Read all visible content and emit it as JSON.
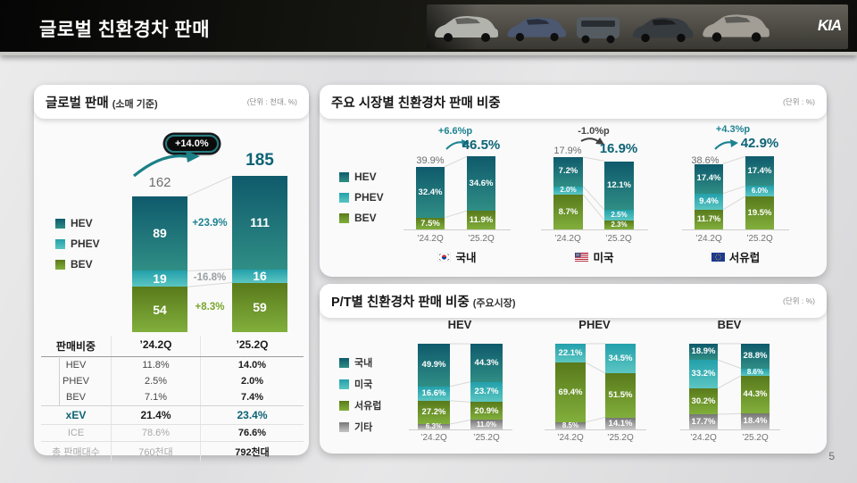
{
  "header": {
    "title": "글로벌 친환경차 판매",
    "brand": "KIA"
  },
  "page_number": "5",
  "colors": {
    "HEV": [
      "#0f5a6c",
      "#2f8e85"
    ],
    "PHEV": [
      "#23a0ab",
      "#5cc6c2"
    ],
    "BEV": [
      "#597a1b",
      "#81af3c"
    ],
    "ETC": [
      "#767676",
      "#c6c6c6"
    ]
  },
  "left_panel": {
    "title": "글로벌 판매",
    "title_suffix": "(소매 기준)",
    "unit": "(단위 : 천대, %)",
    "legend": [
      {
        "label": "HEV",
        "key": "HEV"
      },
      {
        "label": "PHEV",
        "key": "PHEV"
      },
      {
        "label": "BEV",
        "key": "BEV"
      }
    ],
    "table": {
      "headers": [
        "판매비중",
        "’24.2Q",
        "’25.2Q"
      ],
      "rows": [
        {
          "label": "HEV",
          "v1": "11.8%",
          "v2": "14.0%",
          "cls": "row-plain"
        },
        {
          "label": "PHEV",
          "v1": "2.5%",
          "v2": "2.0%",
          "cls": "row-plain"
        },
        {
          "label": "BEV",
          "v1": "7.1%",
          "v2": "7.4%",
          "cls": "row-plain"
        },
        {
          "label": "xEV",
          "v1": "21.4%",
          "v2": "23.4%",
          "cls": "row-xev"
        },
        {
          "label": "ICE",
          "v1": "78.6%",
          "v2": "76.6%",
          "cls": "row-muted"
        },
        {
          "label": "총 판매대수",
          "v1": "760천대",
          "v2": "792천대",
          "cls": "row-muted"
        }
      ]
    }
  },
  "market_panel": {
    "title": "주요 시장별 친환경차 판매 비중",
    "unit": "(단위 : %)",
    "legend": [
      {
        "label": "HEV",
        "key": "HEV"
      },
      {
        "label": "PHEV",
        "key": "PHEV"
      },
      {
        "label": "BEV",
        "key": "BEV"
      }
    ]
  },
  "pt_panel": {
    "title": "P/T별 친환경차 판매 비중",
    "title_suffix": "(주요시장)",
    "unit": "(단위 : %)",
    "legend": [
      {
        "label": "국내",
        "key": "HEV"
      },
      {
        "label": "미국",
        "key": "PHEV"
      },
      {
        "label": "서유럽",
        "key": "BEV"
      },
      {
        "label": "기타",
        "key": "ETC"
      }
    ]
  },
  "chart_data": [
    {
      "id": "global_sales",
      "type": "bar",
      "stacked": true,
      "title": "글로벌 판매 (소매 기준)",
      "unit": "천대",
      "categories": [
        "’24.2Q",
        "’25.2Q"
      ],
      "totals_display": [
        "162",
        "185"
      ],
      "change": "+14.0%",
      "series": [
        {
          "name": "HEV",
          "key": "HEV",
          "values": [
            "89",
            "111"
          ]
        },
        {
          "name": "PHEV",
          "key": "PHEV",
          "values": [
            "19",
            "16"
          ]
        },
        {
          "name": "BEV",
          "key": "BEV",
          "values": [
            "54",
            "59"
          ]
        }
      ],
      "seg_changes": [
        {
          "name": "HEV",
          "label": "+23.9%",
          "tone": "teal"
        },
        {
          "name": "PHEV",
          "label": "-16.8%",
          "tone": "gray"
        },
        {
          "name": "BEV",
          "label": "+8.3%",
          "tone": "green"
        }
      ]
    },
    {
      "id": "korea",
      "type": "bar",
      "stacked": true,
      "region": "국내",
      "change": "+6.6%p",
      "categories": [
        "’24.2Q",
        "’25.2Q"
      ],
      "totals_display": [
        "39.9%",
        "46.5%"
      ],
      "series": [
        {
          "name": "HEV",
          "key": "HEV",
          "values": [
            "32.4",
            "34.6"
          ]
        },
        {
          "name": "PHEV",
          "key": "PHEV",
          "values": [
            "",
            ""
          ]
        },
        {
          "name": "BEV",
          "key": "BEV",
          "values": [
            "7.5",
            "11.9"
          ]
        }
      ]
    },
    {
      "id": "us",
      "type": "bar",
      "stacked": true,
      "region": "미국",
      "change": "-1.0%p",
      "categories": [
        "’24.2Q",
        "’25.2Q"
      ],
      "totals_display": [
        "17.9%",
        "16.9%"
      ],
      "series": [
        {
          "name": "HEV",
          "key": "HEV",
          "values": [
            "7.2",
            "12.1"
          ]
        },
        {
          "name": "PHEV",
          "key": "PHEV",
          "values": [
            "2.0",
            "2.5"
          ]
        },
        {
          "name": "BEV",
          "key": "BEV",
          "values": [
            "8.7",
            "2.3"
          ]
        }
      ]
    },
    {
      "id": "western_europe",
      "type": "bar",
      "stacked": true,
      "region": "서유럽",
      "change": "+4.3%p",
      "categories": [
        "’24.2Q",
        "’25.2Q"
      ],
      "totals_display": [
        "38.6%",
        "42.9%"
      ],
      "series": [
        {
          "name": "HEV",
          "key": "HEV",
          "values": [
            "17.4",
            "17.4"
          ]
        },
        {
          "name": "PHEV",
          "key": "PHEV",
          "values": [
            "9.4",
            "6.0"
          ]
        },
        {
          "name": "BEV",
          "key": "BEV",
          "values": [
            "11.7",
            "19.5"
          ]
        }
      ]
    },
    {
      "id": "pt_hev",
      "type": "bar",
      "stacked": true,
      "group": "HEV",
      "categories": [
        "’24.2Q",
        "’25.2Q"
      ],
      "series": [
        {
          "name": "국내",
          "key": "HEV",
          "values": [
            "49.9",
            "44.3"
          ]
        },
        {
          "name": "미국",
          "key": "PHEV",
          "values": [
            "16.6",
            "23.7"
          ]
        },
        {
          "name": "서유럽",
          "key": "BEV",
          "values": [
            "27.2",
            "20.9"
          ]
        },
        {
          "name": "기타",
          "key": "ETC",
          "values": [
            "6.3",
            "11.0"
          ]
        }
      ]
    },
    {
      "id": "pt_phev",
      "type": "bar",
      "stacked": true,
      "group": "PHEV",
      "categories": [
        "’24.2Q",
        "’25.2Q"
      ],
      "series": [
        {
          "name": "국내",
          "key": "HEV",
          "values": [
            "",
            ""
          ]
        },
        {
          "name": "미국",
          "key": "PHEV",
          "values": [
            "22.1",
            "34.5"
          ]
        },
        {
          "name": "서유럽",
          "key": "BEV",
          "values": [
            "69.4",
            "51.5"
          ]
        },
        {
          "name": "기타",
          "key": "ETC",
          "values": [
            "8.5",
            "14.1"
          ]
        }
      ]
    },
    {
      "id": "pt_bev",
      "type": "bar",
      "stacked": true,
      "group": "BEV",
      "categories": [
        "’24.2Q",
        "’25.2Q"
      ],
      "series": [
        {
          "name": "국내",
          "key": "HEV",
          "values": [
            "18.9",
            "28.8"
          ]
        },
        {
          "name": "미국",
          "key": "PHEV",
          "values": [
            "33.2",
            "8.6"
          ]
        },
        {
          "name": "서유럽",
          "key": "BEV",
          "values": [
            "30.2",
            "44.3"
          ]
        },
        {
          "name": "기타",
          "key": "ETC",
          "values": [
            "17.7",
            "18.4"
          ]
        }
      ]
    }
  ]
}
